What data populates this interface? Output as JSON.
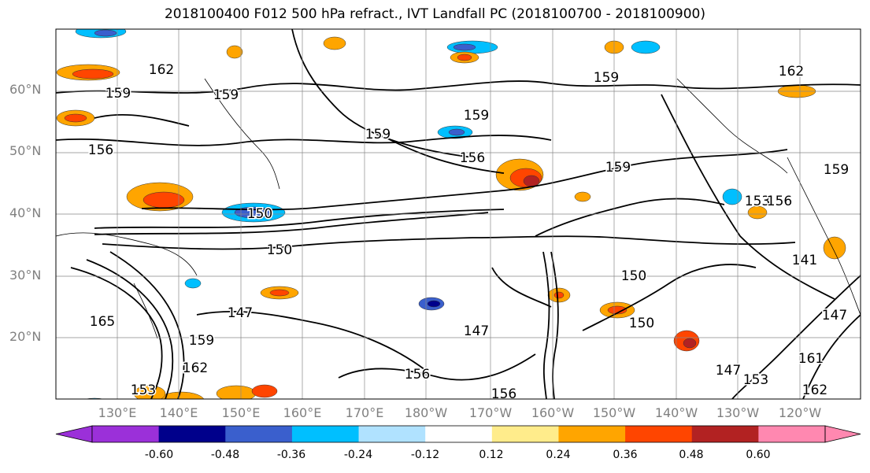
{
  "title": "2018100400 F012 500 hPa refract., IVT Landfall PC (2018100700 - 2018100900)",
  "lat_labels": [
    "60°N",
    "50°N",
    "40°N",
    "30°N",
    "20°N"
  ],
  "lon_labels": [
    "130°E",
    "140°E",
    "150°E",
    "160°E",
    "170°E",
    "180°W",
    "170°W",
    "160°W",
    "150°W",
    "140°W",
    "130°W",
    "120°W"
  ],
  "contour_labels": [
    "159",
    "162",
    "156",
    "150",
    "150",
    "159",
    "159",
    "159",
    "156",
    "159",
    "159",
    "162",
    "153",
    "156",
    "147",
    "147",
    "150",
    "150",
    "147",
    "156",
    "156",
    "153",
    "165",
    "162",
    "159",
    "141",
    "147",
    "161",
    "162",
    "159",
    "153"
  ],
  "colorbar": {
    "colors": [
      "#9b30d9",
      "#00008b",
      "#3a5fcd",
      "#00bfff",
      "#b0e2ff",
      "#ffffff",
      "#ffec8b",
      "#ffa500",
      "#ff4500",
      "#b22222",
      "#ff88b0"
    ],
    "tick_labels": [
      "-0.60",
      "-0.48",
      "-0.36",
      "-0.24",
      "-0.12",
      "0.12",
      "0.24",
      "0.36",
      "0.48",
      "0.60"
    ]
  }
}
